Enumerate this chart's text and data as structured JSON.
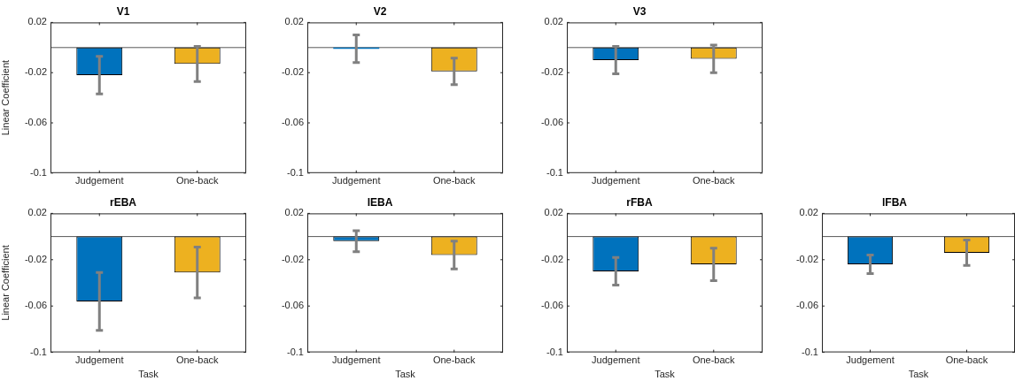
{
  "chart_data": [
    {
      "type": "bar",
      "title": "V1",
      "ylabel": "Linear Coefficient",
      "categories": [
        "Judgement",
        "One-back"
      ],
      "values": [
        -0.022,
        -0.013
      ],
      "colors": [
        "#0072bd",
        "#edb120"
      ],
      "errors": [
        0.015,
        0.014
      ],
      "ylim": [
        -0.1,
        0.02
      ],
      "yticks": [
        0.02,
        -0.02,
        -0.06,
        -0.1
      ],
      "ref_lines": [
        {
          "axis": "y",
          "value": 0,
          "color": "#595959"
        }
      ],
      "grid": false,
      "legend": false
    },
    {
      "type": "bar",
      "title": "V2",
      "categories": [
        "Judgement",
        "One-back"
      ],
      "values": [
        -0.001,
        -0.019
      ],
      "colors": [
        "#0072bd",
        "#edb120"
      ],
      "errors": [
        0.011,
        0.0105
      ],
      "ylim": [
        -0.1,
        0.02
      ],
      "yticks": [
        0.02,
        -0.02,
        -0.06,
        -0.1
      ],
      "ref_lines": [
        {
          "axis": "y",
          "value": 0,
          "color": "#595959"
        }
      ],
      "grid": false,
      "legend": false
    },
    {
      "type": "bar",
      "title": "V3",
      "categories": [
        "Judgement",
        "One-back"
      ],
      "values": [
        -0.01,
        -0.009
      ],
      "colors": [
        "#0072bd",
        "#edb120"
      ],
      "errors": [
        0.011,
        0.011
      ],
      "ylim": [
        -0.1,
        0.02
      ],
      "yticks": [
        0.02,
        -0.02,
        -0.06,
        -0.1
      ],
      "ref_lines": [
        {
          "axis": "y",
          "value": 0,
          "color": "#595959"
        }
      ],
      "grid": false,
      "legend": false
    },
    {
      "type": "bar",
      "title": "rEBA",
      "xlabel": "Task",
      "ylabel": "Linear Coefficient",
      "categories": [
        "Judgement",
        "One-back"
      ],
      "values": [
        -0.056,
        -0.031
      ],
      "colors": [
        "#0072bd",
        "#edb120"
      ],
      "errors": [
        0.025,
        0.022
      ],
      "ylim": [
        -0.1,
        0.02
      ],
      "yticks": [
        0.02,
        -0.02,
        -0.06,
        -0.1
      ],
      "ref_lines": [
        {
          "axis": "y",
          "value": 0,
          "color": "#595959"
        }
      ],
      "grid": false,
      "legend": false
    },
    {
      "type": "bar",
      "title": "lEBA",
      "xlabel": "Task",
      "categories": [
        "Judgement",
        "One-back"
      ],
      "values": [
        -0.004,
        -0.016
      ],
      "colors": [
        "#0072bd",
        "#edb120"
      ],
      "errors": [
        0.009,
        0.012
      ],
      "ylim": [
        -0.1,
        0.02
      ],
      "yticks": [
        0.02,
        -0.02,
        -0.06,
        -0.1
      ],
      "ref_lines": [
        {
          "axis": "y",
          "value": 0,
          "color": "#595959"
        }
      ],
      "grid": false,
      "legend": false
    },
    {
      "type": "bar",
      "title": "rFBA",
      "xlabel": "Task",
      "categories": [
        "Judgement",
        "One-back"
      ],
      "values": [
        -0.03,
        -0.024
      ],
      "colors": [
        "#0072bd",
        "#edb120"
      ],
      "errors": [
        0.012,
        0.014
      ],
      "ylim": [
        -0.1,
        0.02
      ],
      "yticks": [
        0.02,
        -0.02,
        -0.06,
        -0.1
      ],
      "ref_lines": [
        {
          "axis": "y",
          "value": 0,
          "color": "#595959"
        }
      ],
      "grid": false,
      "legend": false
    },
    {
      "type": "bar",
      "title": "lFBA",
      "xlabel": "Task",
      "categories": [
        "Judgement",
        "One-back"
      ],
      "values": [
        -0.024,
        -0.014
      ],
      "colors": [
        "#0072bd",
        "#edb120"
      ],
      "errors": [
        0.008,
        0.011
      ],
      "ylim": [
        -0.1,
        0.02
      ],
      "yticks": [
        0.02,
        -0.02,
        -0.06,
        -0.1
      ],
      "ref_lines": [
        {
          "axis": "y",
          "value": 0,
          "color": "#595959"
        }
      ],
      "grid": false,
      "legend": false
    }
  ]
}
